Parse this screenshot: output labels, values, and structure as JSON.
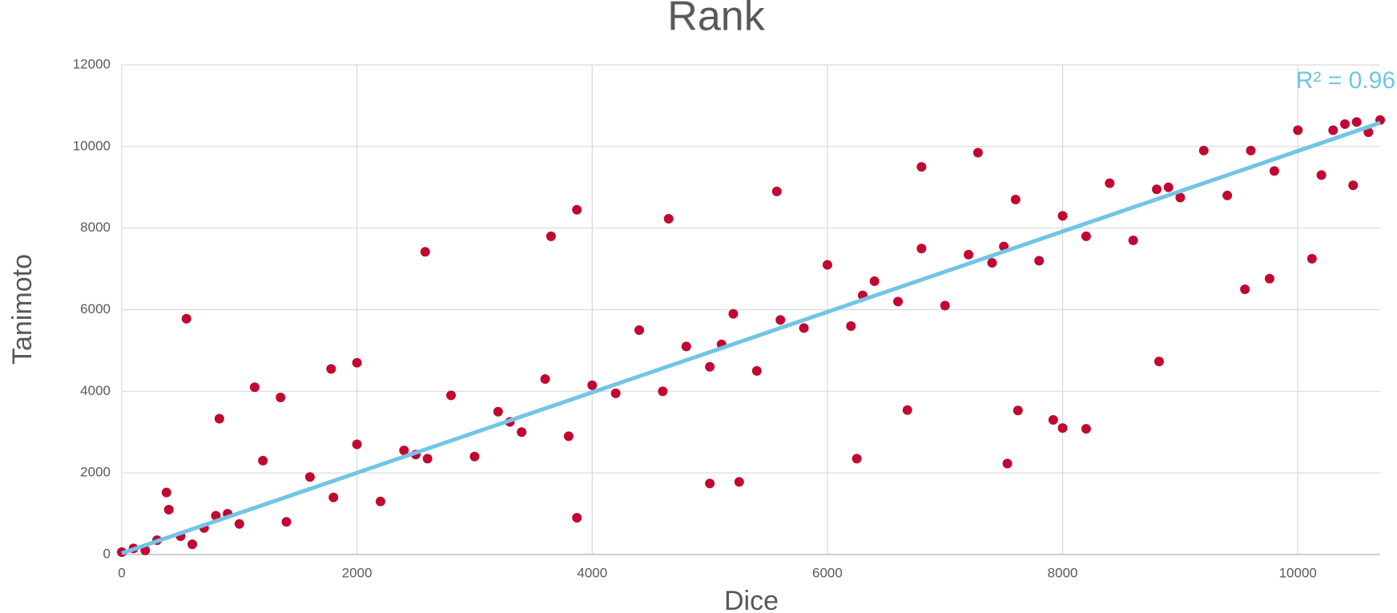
{
  "chart_data": {
    "type": "scatter",
    "title": "Rank",
    "x_label": "Dice",
    "y_label": "Tanimoto",
    "color": "#c00832",
    "xlim": [
      0,
      10700
    ],
    "ylim": [
      0,
      12000
    ],
    "xticks": [
      0,
      2000,
      4000,
      6000,
      8000,
      10000
    ],
    "yticks": [
      0,
      2000,
      4000,
      6000,
      8000,
      10000,
      12000
    ],
    "grid": true,
    "x": [
      0,
      200,
      400,
      600,
      800,
      1000,
      1200,
      1400,
      1600,
      1800,
      2000,
      2200,
      2400,
      2600,
      2800,
      3000,
      3200,
      3400,
      3600,
      3800,
      4000,
      4200,
      4400,
      4600,
      4800,
      5000,
      5200,
      5400,
      5600,
      5800,
      6000,
      6200,
      6400,
      6600,
      6800,
      7000,
      7200,
      7400,
      7600,
      7800,
      8000,
      8200,
      8400,
      8600,
      8800,
      9000,
      9200,
      9400,
      9600,
      9800,
      10000,
      10200,
      10400,
      10600,
      100,
      300,
      500,
      700,
      900,
      10700,
      10500,
      10300,
      5100,
      2500,
      7500,
      8900,
      6300,
      3300,
      550,
      2580,
      3870,
      3650,
      7280,
      6800,
      5570,
      4650,
      7530,
      8820,
      8200,
      3870,
      6250,
      5000,
      5250,
      1130,
      1780,
      2000,
      830,
      10120,
      10470,
      9760,
      9550,
      1350,
      380,
      7920,
      8000,
      7620,
      6680
    ],
    "y": [
      60,
      100,
      1100,
      250,
      950,
      750,
      2300,
      800,
      1900,
      1400,
      2700,
      1300,
      2550,
      2350,
      3900,
      2400,
      3500,
      3000,
      4300,
      2900,
      4150,
      3950,
      5500,
      4000,
      5100,
      4600,
      5900,
      4500,
      5750,
      5550,
      7100,
      5600,
      6700,
      6200,
      7500,
      6100,
      7350,
      7150,
      8700,
      7200,
      8300,
      7800,
      9100,
      7700,
      8950,
      8750,
      9900,
      8800,
      9900,
      9400,
      10400,
      9300,
      10550,
      10350,
      150,
      350,
      450,
      650,
      1000,
      10650,
      10600,
      10400,
      5150,
      2450,
      7550,
      9000,
      6350,
      3250,
      5780,
      7420,
      8450,
      7800,
      9850,
      9500,
      8900,
      8230,
      2230,
      4730,
      3080,
      900,
      2350,
      1740,
      1780,
      4100,
      4550,
      4700,
      3330,
      7250,
      9050,
      6760,
      6500,
      3850,
      1520,
      3300,
      3100,
      3530,
      3540
    ],
    "trendline": {
      "color": "#72c5e6",
      "x": [
        0,
        10700
      ],
      "y": [
        30,
        10580
      ]
    },
    "annotation": "R² = 0.96"
  }
}
